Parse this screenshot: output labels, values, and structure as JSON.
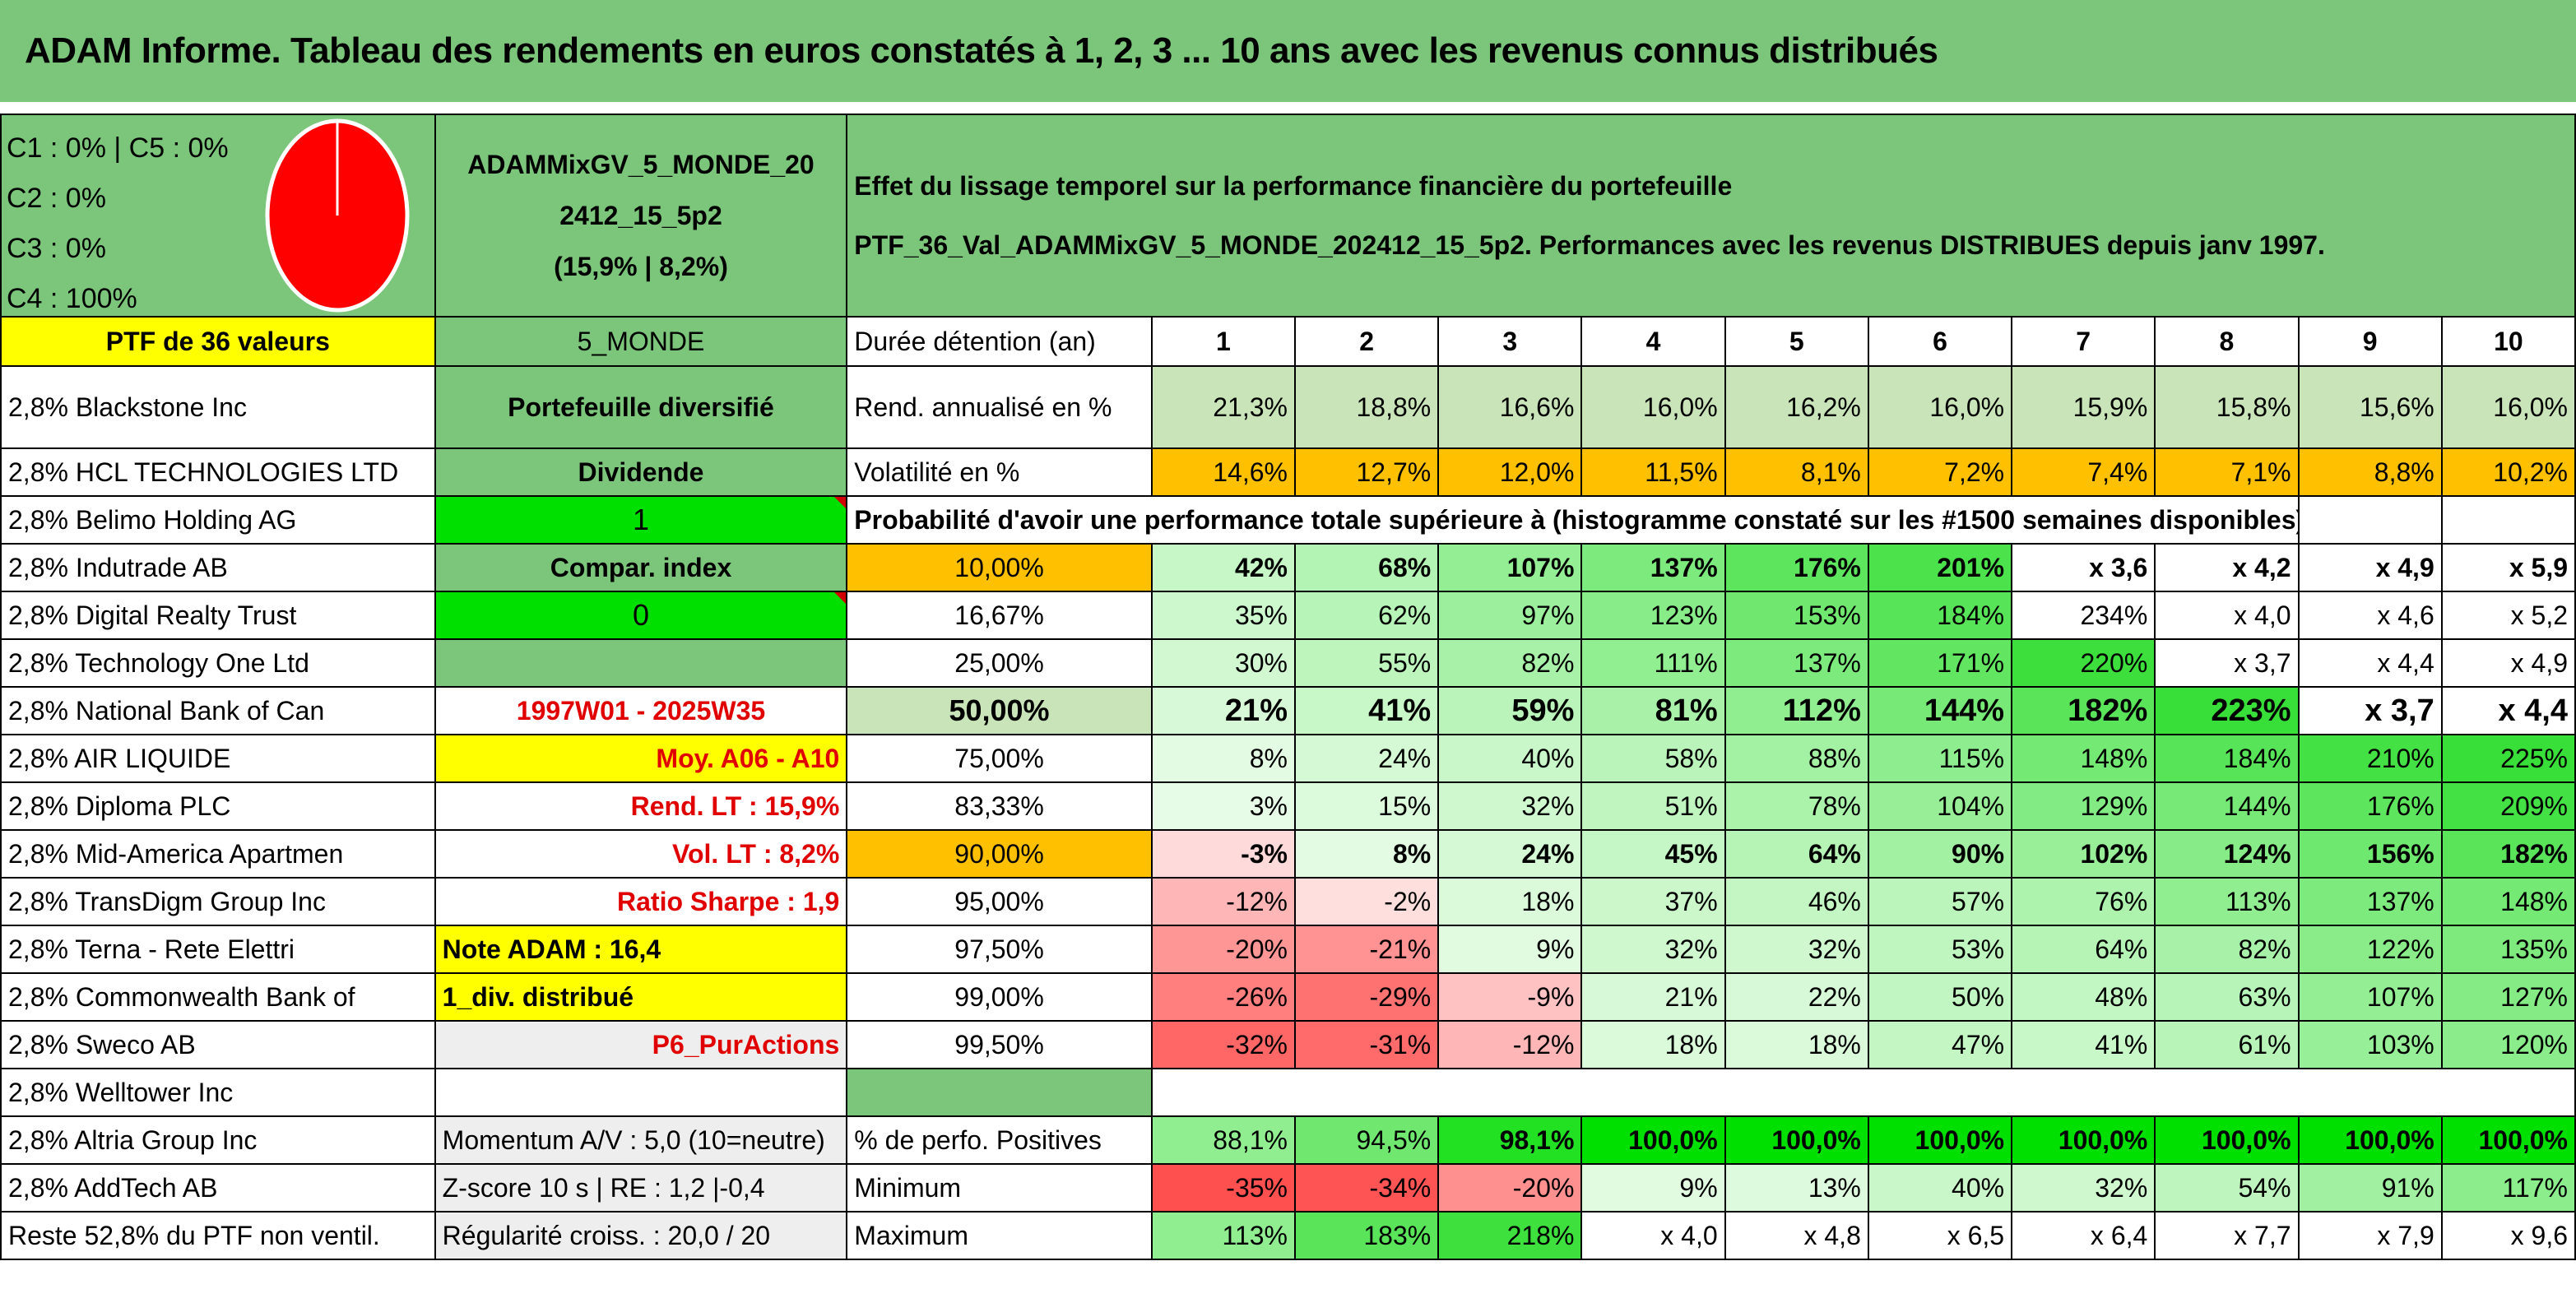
{
  "title": "ADAM Informe. Tableau des rendements en euros constatés à 1, 2, 3 ... 10 ans avec les revenus connus distribués",
  "allocation": [
    "C1 : 0% | C5 : 0%",
    "C2 : 0%",
    "C3 : 0%",
    "C4 : 100%"
  ],
  "colors": {
    "header_green": "#7cc67c",
    "pie_red": "#ff0000",
    "yellow": "#ffff00",
    "orange": "#ffc000",
    "label_red": "#e00000"
  },
  "fund": {
    "name_line1": "ADAMMixGV_5_MONDE_20",
    "name_line2": "2412_15_5p2",
    "name_line3": "(15,9% | 8,2%)"
  },
  "effet": {
    "line1": "Effet du lissage temporel sur la performance financière du portefeuille",
    "line2": "PTF_36_Val_ADAMMixGV_5_MONDE_202412_15_5p2. Performances avec les revenus DISTRIBUES depuis janv 1997."
  },
  "ptf_label": "PTF de 36 valeurs",
  "zone": "5_MONDE",
  "duree_label": "Durée détention (an)",
  "years": [
    "1",
    "2",
    "3",
    "4",
    "5",
    "6",
    "7",
    "8",
    "9",
    "10"
  ],
  "holdings": [
    "2,8% Blackstone Inc",
    "2,8% HCL TECHNOLOGIES LTD",
    "2,8% Belimo Holding AG",
    "2,8% Indutrade AB",
    "2,8% Digital Realty Trust",
    "2,8% Technology One Ltd",
    "2,8% National Bank of Can",
    "2,8% AIR LIQUIDE",
    "2,8% Diploma PLC",
    "2,8% Mid-America Apartmen",
    "2,8% TransDigm Group Inc",
    "2,8% Terna - Rete Elettri",
    "2,8% Commonwealth Bank of",
    "2,8% Sweco AB",
    "2,8% Welltower Inc",
    "2,8% Altria Group Inc",
    "2,8% AddTech AB",
    "Reste 52,8% du PTF non ventil."
  ],
  "info": {
    "portefeuille": "Portefeuille diversifié",
    "dividende": "Dividende",
    "one": "1",
    "compar": "Compar. index",
    "zero": "0",
    "blank": "",
    "period": "1997W01 - 2025W35",
    "moy": "Moy. A06 - A10",
    "rend_lt": "Rend. LT : 15,9%",
    "vol_lt": "Vol. LT : 8,2%",
    "sharpe": "Ratio Sharpe : 1,9",
    "note": "Note ADAM : 16,4",
    "div": "1_div. distribué",
    "p6": "P6_PurActions",
    "momentum": "Momentum A/V : 5,0 (10=neutre)",
    "zscore": "Z-score 10 s | RE : 1,2 |-0,4",
    "regularite": "Régularité croiss. : 20,0 / 20"
  },
  "rend": {
    "label": "Rend. annualisé en %",
    "values": [
      "21,3%",
      "18,8%",
      "16,6%",
      "16,0%",
      "16,2%",
      "16,0%",
      "15,9%",
      "15,8%",
      "15,6%",
      "16,0%"
    ]
  },
  "vol": {
    "label": "Volatilité en %",
    "values": [
      "14,6%",
      "12,7%",
      "12,0%",
      "11,5%",
      "8,1%",
      "7,2%",
      "7,4%",
      "7,1%",
      "8,8%",
      "10,2%"
    ]
  },
  "prob_title": "Probabilité d'avoir une performance totale supérieure à (histogramme constaté sur les #1500 semaines disponibles)",
  "prob_rows": [
    {
      "p": "10,00%",
      "values": [
        "42%",
        "68%",
        "107%",
        "137%",
        "176%",
        "201%",
        "x 3,6",
        "x 4,2",
        "x 4,9",
        "x 5,9"
      ]
    },
    {
      "p": "16,67%",
      "values": [
        "35%",
        "62%",
        "97%",
        "123%",
        "153%",
        "184%",
        "234%",
        "x 4,0",
        "x 4,6",
        "x 5,2"
      ]
    },
    {
      "p": "25,00%",
      "values": [
        "30%",
        "55%",
        "82%",
        "111%",
        "137%",
        "171%",
        "220%",
        "x 3,7",
        "x 4,4",
        "x 4,9"
      ]
    },
    {
      "p": "50,00%",
      "values": [
        "21%",
        "41%",
        "59%",
        "81%",
        "112%",
        "144%",
        "182%",
        "223%",
        "x 3,7",
        "x 4,4"
      ]
    },
    {
      "p": "75,00%",
      "values": [
        "8%",
        "24%",
        "40%",
        "58%",
        "88%",
        "115%",
        "148%",
        "184%",
        "210%",
        "225%"
      ]
    },
    {
      "p": "83,33%",
      "values": [
        "3%",
        "15%",
        "32%",
        "51%",
        "78%",
        "104%",
        "129%",
        "144%",
        "176%",
        "209%"
      ]
    },
    {
      "p": "90,00%",
      "values": [
        "-3%",
        "8%",
        "24%",
        "45%",
        "64%",
        "90%",
        "102%",
        "124%",
        "156%",
        "182%"
      ]
    },
    {
      "p": "95,00%",
      "values": [
        "-12%",
        "-2%",
        "18%",
        "37%",
        "46%",
        "57%",
        "76%",
        "113%",
        "137%",
        "148%"
      ]
    },
    {
      "p": "97,50%",
      "values": [
        "-20%",
        "-21%",
        "9%",
        "32%",
        "32%",
        "53%",
        "64%",
        "82%",
        "122%",
        "135%"
      ]
    },
    {
      "p": "99,00%",
      "values": [
        "-26%",
        "-29%",
        "-9%",
        "21%",
        "22%",
        "50%",
        "48%",
        "63%",
        "107%",
        "127%"
      ]
    },
    {
      "p": "99,50%",
      "values": [
        "-32%",
        "-31%",
        "-12%",
        "18%",
        "18%",
        "47%",
        "41%",
        "61%",
        "103%",
        "120%"
      ]
    }
  ],
  "pos": {
    "label": "% de perfo. Positives",
    "values": [
      "88,1%",
      "94,5%",
      "98,1%",
      "100,0%",
      "100,0%",
      "100,0%",
      "100,0%",
      "100,0%",
      "100,0%",
      "100,0%"
    ]
  },
  "min": {
    "label": "Minimum",
    "values": [
      "-35%",
      "-34%",
      "-20%",
      "9%",
      "13%",
      "40%",
      "32%",
      "54%",
      "91%",
      "117%"
    ]
  },
  "max": {
    "label": "Maximum",
    "values": [
      "113%",
      "183%",
      "218%",
      "x 4,0",
      "x 4,8",
      "x 6,5",
      "x 6,4",
      "x 7,7",
      "x 7,9",
      "x 9,6"
    ]
  }
}
